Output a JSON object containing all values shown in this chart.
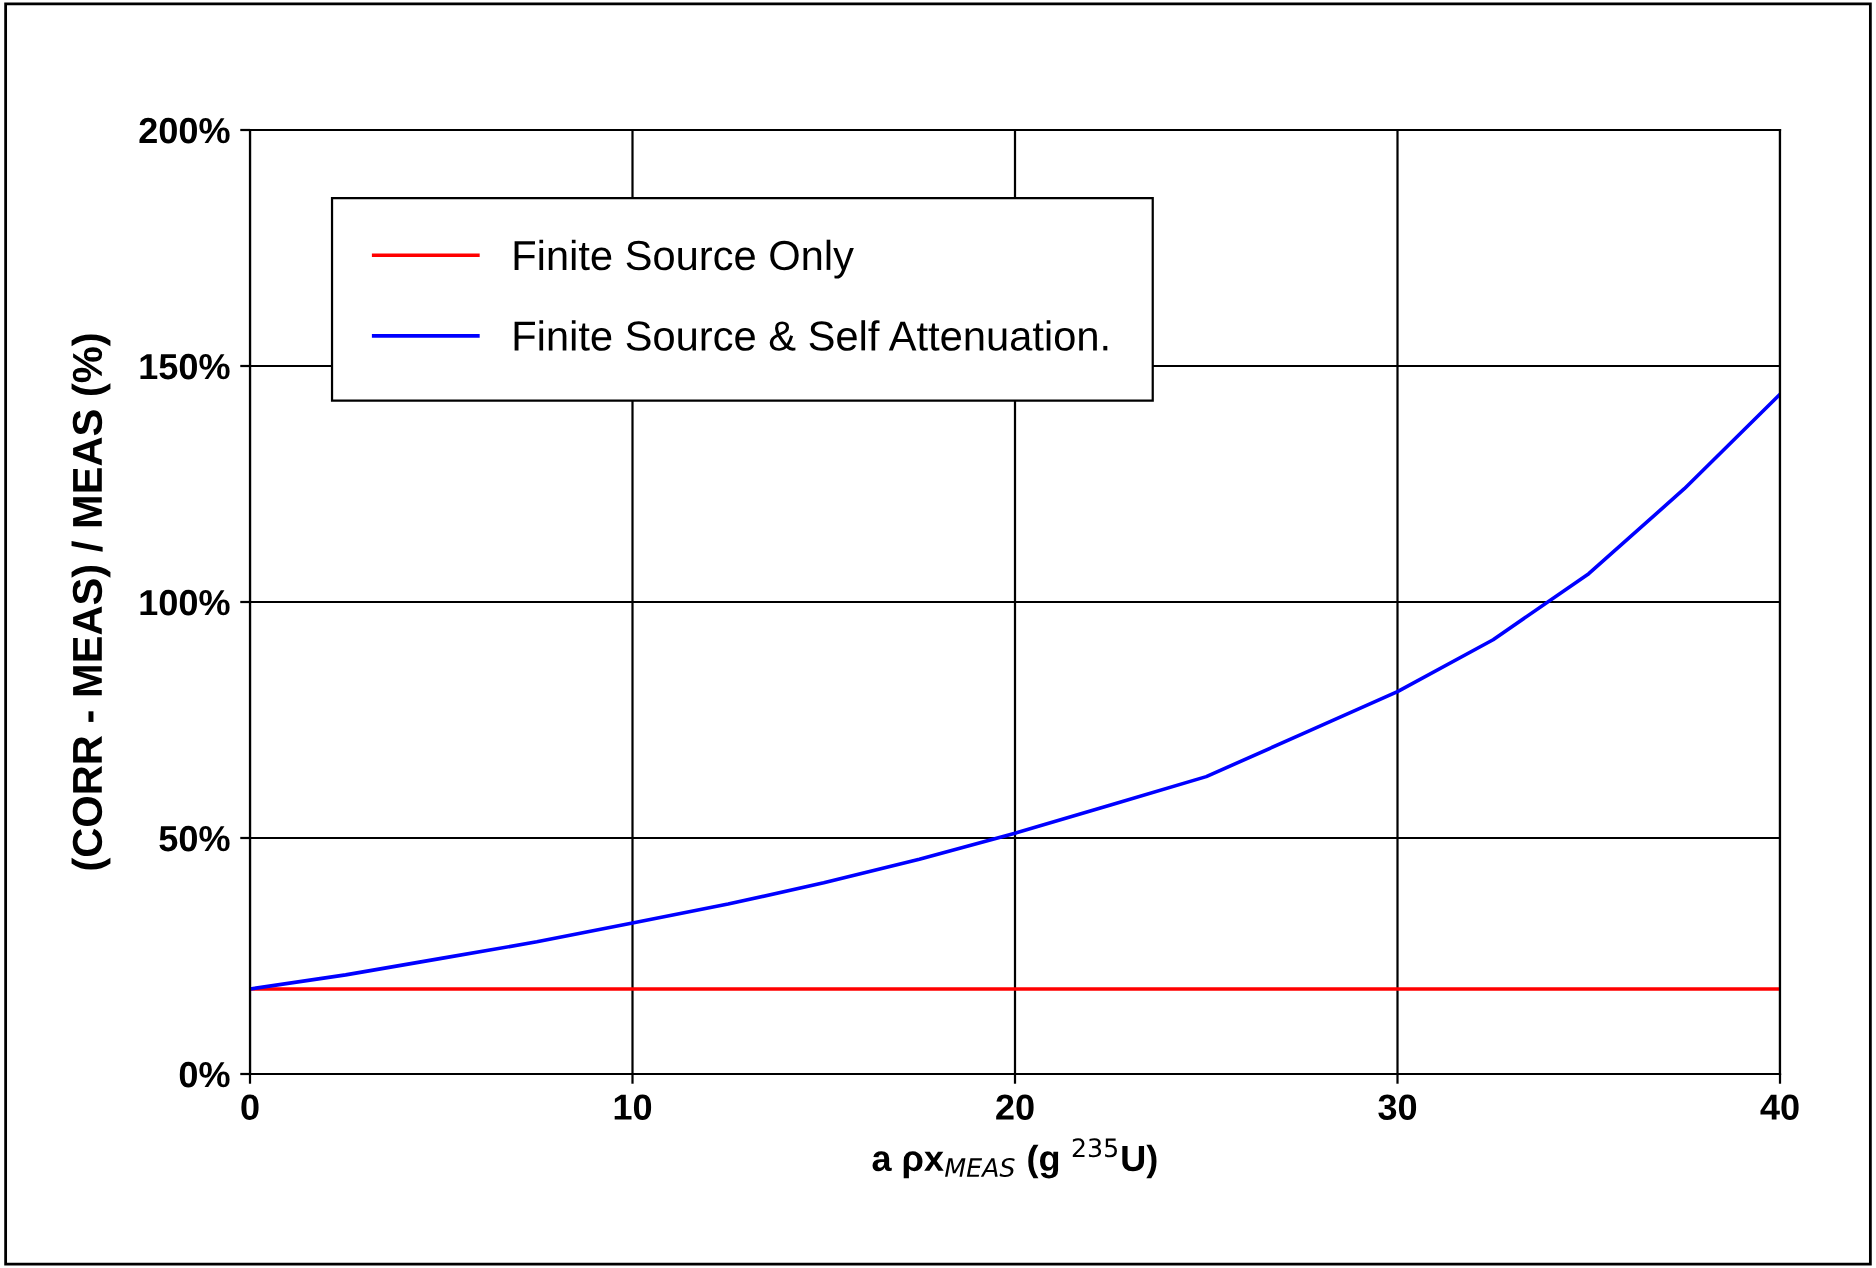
{
  "chart_data": {
    "type": "line",
    "xlabel": "a ρx$_{MEAS}$ (g $^{235}$U)",
    "ylabel": "(CORR - MEAS) / MEAS (%)",
    "series": [
      {
        "name": "Finite Source Only",
        "color": "#ff0000",
        "x": [
          0,
          40
        ],
        "values": [
          18,
          18
        ]
      },
      {
        "name": "Finite Source & Self Attenuation.",
        "color": "#0000ff",
        "x": [
          0,
          2.5,
          5,
          7.5,
          10,
          12.5,
          15,
          17.5,
          20,
          22.5,
          25,
          27.5,
          30,
          32.5,
          35,
          37.5,
          40
        ],
        "values": [
          18,
          21,
          24.5,
          28,
          32,
          36,
          40.5,
          45.5,
          51,
          57,
          63,
          72,
          81,
          92,
          106,
          124,
          144
        ]
      }
    ],
    "xlim": [
      0,
      40
    ],
    "xticks": [
      0,
      10,
      20,
      30,
      40
    ],
    "ylim": [
      0,
      200
    ],
    "yticks": [
      {
        "value": 0,
        "label": "0%"
      },
      {
        "value": 50,
        "label": "50%"
      },
      {
        "value": 100,
        "label": "100%"
      },
      {
        "value": 150,
        "label": "150%"
      },
      {
        "value": 200,
        "label": "200%"
      }
    ],
    "grid": true,
    "legend": "top left",
    "marker": "none",
    "line_style": "solid"
  }
}
